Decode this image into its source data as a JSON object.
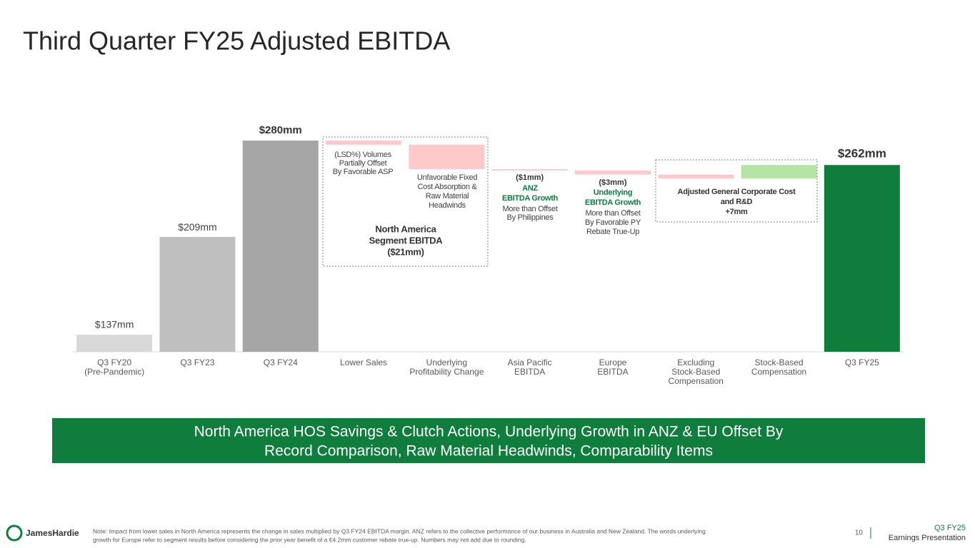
{
  "chart_data": {
    "type": "waterfall",
    "title": "Third Quarter FY25 Adjusted EBITDA",
    "categories": [
      [
        "Q3 FY20",
        "(Pre-Pandemic)"
      ],
      [
        "Q3 FY23"
      ],
      [
        "Q3 FY24"
      ],
      [
        "Lower Sales"
      ],
      [
        "Underlying",
        "Profitability Change"
      ],
      [
        "Asia Pacific",
        "EBITDA"
      ],
      [
        "Europe",
        "EBITDA"
      ],
      [
        "Excluding",
        "Stock-Based",
        "Compensation"
      ],
      [
        "Stock-Based",
        "Compensation"
      ],
      [
        "Q3 FY25"
      ]
    ],
    "measure": [
      "total",
      "total",
      "total",
      "delta",
      "delta",
      "delta",
      "delta",
      "delta",
      "delta",
      "total"
    ],
    "values": [
      137,
      209,
      280,
      -3,
      -18,
      -1,
      -3,
      -3,
      10,
      262
    ],
    "value_labels": [
      "$137mm",
      "$209mm",
      "$280mm",
      null,
      null,
      "($1mm)",
      "($3mm)",
      null,
      null,
      "$262mm"
    ],
    "colors": [
      "#d9d9d9",
      "#bfbfbf",
      "#a6a6a6",
      "#ffc9c9",
      "#ffc9c9",
      "#ffc9c9",
      "#ffc9c9",
      "#ffc9c9",
      "#b5e5a4",
      "#0f7d3b"
    ],
    "ylim": [
      124.4,
      280
    ],
    "annotations": [
      {
        "lines": [
          "(LSD%) Volumes",
          "Partially Offset",
          "By Favorable ASP"
        ],
        "style": "normal"
      },
      {
        "lines": [
          "Unfavorable Fixed",
          "Cost Absorption &",
          "Raw Material",
          "Headwinds"
        ],
        "style": "normal"
      },
      {
        "lines": [
          "North America",
          "Segment EBITDA",
          "($21mm)"
        ],
        "style": "bold"
      },
      {
        "lines": [
          "ANZ",
          "EBITDA Growth"
        ],
        "style": "green"
      },
      {
        "lines": [
          "More than Offset",
          "By Philippines"
        ],
        "style": "normal"
      },
      {
        "lines": [
          "Underlying",
          "EBITDA Growth"
        ],
        "style": "green"
      },
      {
        "lines": [
          "More than Offset",
          "By Favorable PY",
          "Rebate True-Up"
        ],
        "style": "normal"
      },
      {
        "lines": [
          "Adjusted General Corporate Cost",
          "and R&D",
          "+7mm"
        ],
        "style": "bold"
      }
    ]
  },
  "page": {
    "banner": [
      "North America HOS Savings & Clutch Actions, Underlying Growth in ANZ & EU Offset By",
      "Record Comparison, Raw Material Headwinds, Comparability Items"
    ],
    "logo": "JamesHardie",
    "note": [
      "Note: Impact from lower sales in North America represents the change in sales multiplied by Q3 FY24 EBITDA margin. ANZ refers to the collective performance of our business in Australia and New Zealand. The words underlying",
      "growth for Europe refer to segment results before considering the prior year benefit of a €4.2mm customer rebate true-up. Numbers may not add due to rounding."
    ],
    "page_number": "10",
    "footer": [
      "Q3 FY25",
      "Earnings Presentation"
    ]
  }
}
